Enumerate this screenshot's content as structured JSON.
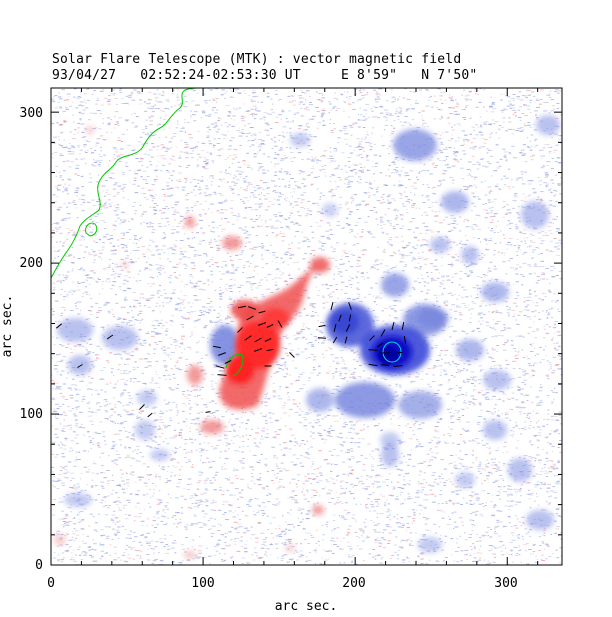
{
  "header": {
    "title": "Solar Flare Telescope (MTK) : vector magnetic field",
    "subtitle": "93/04/27   02:52:24-02:53:30 UT     E 8'59\"   N 7'50\""
  },
  "axes": {
    "x_label": "arc sec.",
    "y_label": "arc sec.",
    "x_ticks": [
      "0",
      "100",
      "200",
      "300"
    ],
    "y_ticks": [
      "0",
      "100",
      "200",
      "300"
    ]
  },
  "colors": {
    "positive_polarity": "#ff3030",
    "negative_polarity": "#2020e0",
    "contour": "#00c800",
    "contour_highlight": "#00ffff",
    "noise_blue": "#9aa6e6",
    "noise_red": "#f0a0a0"
  }
}
